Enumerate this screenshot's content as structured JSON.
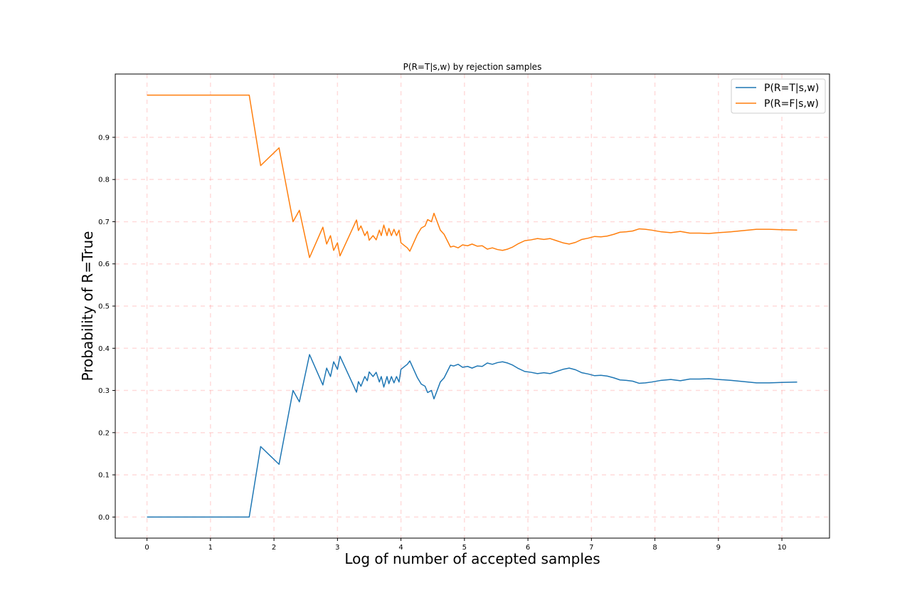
{
  "chart_data": {
    "type": "line",
    "title": "P(R=T|s,w) by rejection samples",
    "xlabel": "Log of number of accepted samples",
    "ylabel": "Probability of R=True",
    "xlim": [
      -0.5,
      10.75
    ],
    "ylim": [
      -0.05,
      1.05
    ],
    "x_ticks": [
      0,
      1,
      2,
      3,
      4,
      5,
      6,
      7,
      8,
      9,
      10
    ],
    "y_ticks": [
      0.0,
      0.1,
      0.2,
      0.3,
      0.4,
      0.5,
      0.6,
      0.7,
      0.8,
      0.9
    ],
    "grid": true,
    "legend_position": "upper right",
    "series": [
      {
        "name": "P(R=T|s,w)",
        "color": "#1f77b4",
        "x": [
          0,
          1.61,
          1.79,
          2.08,
          2.3,
          2.4,
          2.56,
          2.77,
          2.83,
          2.89,
          2.94,
          3.0,
          3.04,
          3.3,
          3.33,
          3.37,
          3.43,
          3.47,
          3.5,
          3.56,
          3.61,
          3.66,
          3.69,
          3.73,
          3.78,
          3.81,
          3.85,
          3.89,
          3.93,
          3.97,
          4.0,
          4.05,
          4.1,
          4.14,
          4.2,
          4.26,
          4.32,
          4.38,
          4.42,
          4.48,
          4.52,
          4.57,
          4.62,
          4.68,
          4.73,
          4.78,
          4.83,
          4.9,
          4.97,
          5.05,
          5.12,
          5.2,
          5.28,
          5.36,
          5.44,
          5.52,
          5.6,
          5.68,
          5.76,
          5.85,
          5.95,
          6.05,
          6.15,
          6.25,
          6.35,
          6.45,
          6.55,
          6.65,
          6.75,
          6.85,
          6.95,
          7.05,
          7.15,
          7.25,
          7.35,
          7.45,
          7.55,
          7.65,
          7.75,
          7.85,
          7.95,
          8.1,
          8.25,
          8.4,
          8.55,
          8.7,
          8.85,
          9.0,
          9.2,
          9.4,
          9.6,
          9.8,
          10.0,
          10.24
        ],
        "y": [
          0.0,
          0.0,
          0.167,
          0.125,
          0.3,
          0.273,
          0.385,
          0.313,
          0.353,
          0.333,
          0.368,
          0.35,
          0.381,
          0.296,
          0.321,
          0.31,
          0.333,
          0.323,
          0.344,
          0.333,
          0.343,
          0.32,
          0.333,
          0.308,
          0.333,
          0.316,
          0.333,
          0.318,
          0.333,
          0.32,
          0.35,
          0.356,
          0.362,
          0.37,
          0.35,
          0.33,
          0.315,
          0.31,
          0.295,
          0.3,
          0.28,
          0.3,
          0.32,
          0.33,
          0.345,
          0.36,
          0.358,
          0.362,
          0.355,
          0.357,
          0.353,
          0.358,
          0.357,
          0.365,
          0.362,
          0.366,
          0.368,
          0.365,
          0.36,
          0.352,
          0.345,
          0.343,
          0.34,
          0.342,
          0.34,
          0.345,
          0.35,
          0.353,
          0.349,
          0.342,
          0.339,
          0.335,
          0.336,
          0.334,
          0.33,
          0.325,
          0.324,
          0.322,
          0.317,
          0.318,
          0.32,
          0.324,
          0.326,
          0.323,
          0.327,
          0.327,
          0.328,
          0.326,
          0.324,
          0.321,
          0.318,
          0.318,
          0.319,
          0.32
        ]
      },
      {
        "name": "P(R=F|s,w)",
        "color": "#ff7f0e",
        "x": [
          0,
          1.61,
          1.79,
          2.08,
          2.3,
          2.4,
          2.56,
          2.77,
          2.83,
          2.89,
          2.94,
          3.0,
          3.04,
          3.3,
          3.33,
          3.37,
          3.43,
          3.47,
          3.5,
          3.56,
          3.61,
          3.66,
          3.69,
          3.73,
          3.78,
          3.81,
          3.85,
          3.89,
          3.93,
          3.97,
          4.0,
          4.05,
          4.1,
          4.14,
          4.2,
          4.26,
          4.32,
          4.38,
          4.42,
          4.48,
          4.52,
          4.57,
          4.62,
          4.68,
          4.73,
          4.78,
          4.83,
          4.9,
          4.97,
          5.05,
          5.12,
          5.2,
          5.28,
          5.36,
          5.44,
          5.52,
          5.6,
          5.68,
          5.76,
          5.85,
          5.95,
          6.05,
          6.15,
          6.25,
          6.35,
          6.45,
          6.55,
          6.65,
          6.75,
          6.85,
          6.95,
          7.05,
          7.15,
          7.25,
          7.35,
          7.45,
          7.55,
          7.65,
          7.75,
          7.85,
          7.95,
          8.1,
          8.25,
          8.4,
          8.55,
          8.7,
          8.85,
          9.0,
          9.2,
          9.4,
          9.6,
          9.8,
          10.0,
          10.24
        ],
        "y": [
          1.0,
          1.0,
          0.833,
          0.875,
          0.7,
          0.727,
          0.615,
          0.687,
          0.647,
          0.667,
          0.632,
          0.65,
          0.619,
          0.704,
          0.679,
          0.69,
          0.667,
          0.677,
          0.656,
          0.667,
          0.657,
          0.68,
          0.667,
          0.692,
          0.667,
          0.684,
          0.667,
          0.682,
          0.667,
          0.68,
          0.65,
          0.644,
          0.638,
          0.63,
          0.65,
          0.67,
          0.685,
          0.69,
          0.705,
          0.7,
          0.72,
          0.7,
          0.68,
          0.67,
          0.655,
          0.64,
          0.642,
          0.638,
          0.645,
          0.643,
          0.647,
          0.642,
          0.643,
          0.635,
          0.638,
          0.634,
          0.632,
          0.635,
          0.64,
          0.648,
          0.655,
          0.657,
          0.66,
          0.658,
          0.66,
          0.655,
          0.65,
          0.647,
          0.651,
          0.658,
          0.661,
          0.665,
          0.664,
          0.666,
          0.67,
          0.675,
          0.676,
          0.678,
          0.683,
          0.682,
          0.68,
          0.676,
          0.674,
          0.677,
          0.673,
          0.673,
          0.672,
          0.674,
          0.676,
          0.679,
          0.682,
          0.682,
          0.681,
          0.68
        ]
      }
    ]
  }
}
